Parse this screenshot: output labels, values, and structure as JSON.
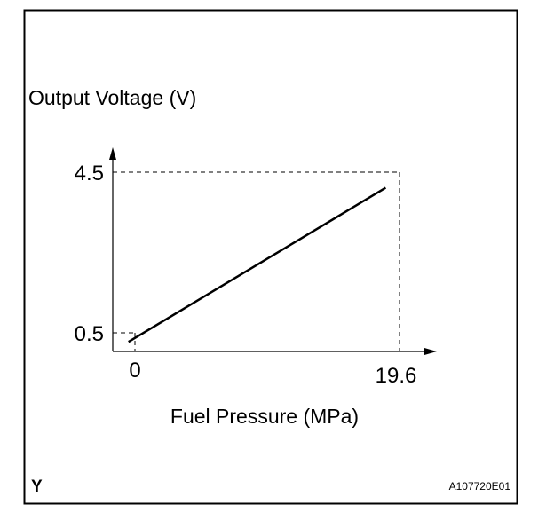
{
  "chart_data": {
    "type": "line",
    "title": "",
    "xlabel": "Fuel Pressure (MPa)",
    "ylabel": "Output Voltage (V)",
    "x": [
      0,
      19.6
    ],
    "series": [
      {
        "values": [
          0.5,
          4.5
        ]
      }
    ],
    "x_ticks": [
      "0",
      "19.6"
    ],
    "y_ticks": [
      "0.5",
      "4.5"
    ],
    "xlim": [
      -1.2,
      23.5
    ],
    "ylim": [
      0.25,
      5.55
    ],
    "grid": false,
    "legend": "none",
    "reference_lines": "dashed guide lines to both axes at the line endpoints"
  },
  "frame": {
    "corner_mark": "Y",
    "figure_code": "A107720E01"
  },
  "colors": {
    "ink": "#000000",
    "background": "#ffffff"
  }
}
